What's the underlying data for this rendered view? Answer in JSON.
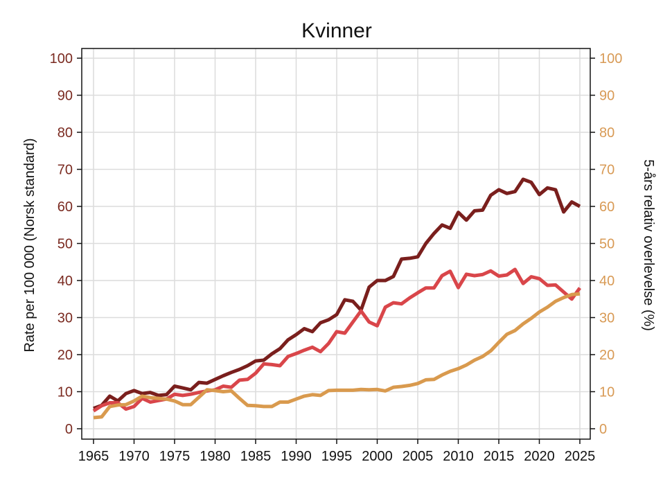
{
  "chart_data": {
    "type": "line",
    "title": "Kvinner",
    "ylabel": "Rate per 100 000 (Norsk standard)",
    "y2label": "5-års relativ overlevelse (%)",
    "xlim": [
      1965,
      2025
    ],
    "ylim": [
      0,
      100
    ],
    "y2lim": [
      0,
      100
    ],
    "x_ticks": [
      1965,
      1970,
      1975,
      1980,
      1985,
      1990,
      1995,
      2000,
      2005,
      2010,
      2015,
      2020,
      2025
    ],
    "y_ticks": [
      0,
      10,
      20,
      30,
      40,
      50,
      60,
      70,
      80,
      90,
      100
    ],
    "grid": true,
    "colors": {
      "dark_red": "#7a1f1d",
      "red": "#d9464a",
      "orange": "#d99a4e",
      "left_axis": "#7a2a20",
      "right_axis": "#d89a55"
    },
    "series": [
      {
        "axis": "left",
        "color_key": "dark_red",
        "x": [
          1965,
          1966,
          1967,
          1968,
          1969,
          1970,
          1971,
          1972,
          1973,
          1974,
          1975,
          1976,
          1977,
          1978,
          1979,
          1980,
          1981,
          1982,
          1983,
          1984,
          1985,
          1986,
          1987,
          1988,
          1989,
          1990,
          1991,
          1992,
          1993,
          1994,
          1995,
          1996,
          1997,
          1998,
          1999,
          2000,
          2001,
          2002,
          2003,
          2004,
          2005,
          2006,
          2007,
          2008,
          2009,
          2010,
          2011,
          2012,
          2013,
          2014,
          2015,
          2016,
          2017,
          2018,
          2019,
          2020,
          2021,
          2022,
          2023,
          2024,
          2025
        ],
        "values": [
          5.5,
          6.3,
          8.8,
          7.5,
          9.5,
          10.3,
          9.5,
          9.8,
          9.0,
          9.2,
          11.5,
          11.0,
          10.5,
          12.5,
          12.3,
          13.3,
          14.3,
          15.2,
          16.0,
          17.0,
          18.3,
          18.5,
          20.2,
          21.6,
          24.0,
          25.4,
          27.0,
          26.2,
          28.6,
          29.4,
          30.8,
          34.8,
          34.4,
          32.0,
          38.2,
          40.0,
          40.0,
          41.1,
          45.8,
          46.0,
          46.4,
          50.0,
          52.7,
          55.0,
          54.1,
          58.4,
          56.3,
          58.8,
          59.0,
          63.0,
          64.5,
          63.5,
          64.0,
          67.3,
          66.5,
          63.2,
          65.0,
          64.5,
          58.5,
          61.2,
          60.0
        ]
      },
      {
        "axis": "left",
        "color_key": "red",
        "x": [
          1965,
          1966,
          1967,
          1968,
          1969,
          1970,
          1971,
          1972,
          1973,
          1974,
          1975,
          1976,
          1977,
          1978,
          1979,
          1980,
          1981,
          1982,
          1983,
          1984,
          1985,
          1986,
          1987,
          1988,
          1989,
          1990,
          1991,
          1992,
          1993,
          1994,
          1995,
          1996,
          1997,
          1998,
          1999,
          2000,
          2001,
          2002,
          2003,
          2004,
          2005,
          2006,
          2007,
          2008,
          2009,
          2010,
          2011,
          2012,
          2013,
          2014,
          2015,
          2016,
          2017,
          2018,
          2019,
          2020,
          2021,
          2022,
          2023,
          2024,
          2025
        ],
        "values": [
          4.8,
          6.2,
          7.0,
          7.0,
          5.3,
          6.0,
          8.2,
          7.2,
          7.6,
          8.0,
          9.3,
          9.0,
          9.3,
          9.8,
          10.2,
          10.5,
          11.5,
          11.2,
          13.1,
          13.3,
          15.0,
          17.5,
          17.3,
          17.0,
          19.5,
          20.3,
          21.2,
          22.0,
          20.8,
          23.0,
          26.2,
          25.8,
          28.8,
          31.8,
          28.8,
          27.8,
          32.8,
          34.0,
          33.7,
          35.3,
          36.7,
          38.0,
          38.0,
          41.3,
          42.5,
          38.1,
          41.7,
          41.3,
          41.6,
          42.6,
          41.2,
          41.5,
          43.0,
          39.2,
          41.0,
          40.5,
          38.7,
          38.8,
          36.9,
          35.0,
          38.0
        ]
      },
      {
        "axis": "right",
        "color_key": "orange",
        "x": [
          1965,
          1966,
          1967,
          1968,
          1969,
          1970,
          1971,
          1972,
          1973,
          1974,
          1975,
          1976,
          1977,
          1978,
          1979,
          1980,
          1981,
          1982,
          1983,
          1984,
          1985,
          1986,
          1987,
          1988,
          1989,
          1990,
          1991,
          1992,
          1993,
          1994,
          1995,
          1996,
          1997,
          1998,
          1999,
          2000,
          2001,
          2002,
          2003,
          2004,
          2005,
          2006,
          2007,
          2008,
          2009,
          2010,
          2011,
          2012,
          2013,
          2014,
          2015,
          2016,
          2017,
          2018,
          2019,
          2020,
          2021,
          2022,
          2023,
          2024,
          2025
        ],
        "values": [
          3.0,
          3.2,
          6.0,
          6.4,
          6.5,
          7.5,
          8.8,
          8.4,
          8.2,
          8.0,
          7.5,
          6.5,
          6.5,
          8.5,
          10.5,
          10.3,
          10.0,
          10.2,
          8.2,
          6.3,
          6.2,
          6.0,
          6.0,
          7.2,
          7.2,
          8.0,
          8.8,
          9.2,
          9.0,
          10.3,
          10.4,
          10.4,
          10.4,
          10.6,
          10.5,
          10.6,
          10.2,
          11.2,
          11.4,
          11.7,
          12.2,
          13.2,
          13.3,
          14.5,
          15.5,
          16.2,
          17.2,
          18.5,
          19.5,
          21.0,
          23.3,
          25.5,
          26.5,
          28.3,
          29.8,
          31.5,
          32.8,
          34.4,
          35.4,
          36.2,
          36.4
        ]
      }
    ]
  }
}
